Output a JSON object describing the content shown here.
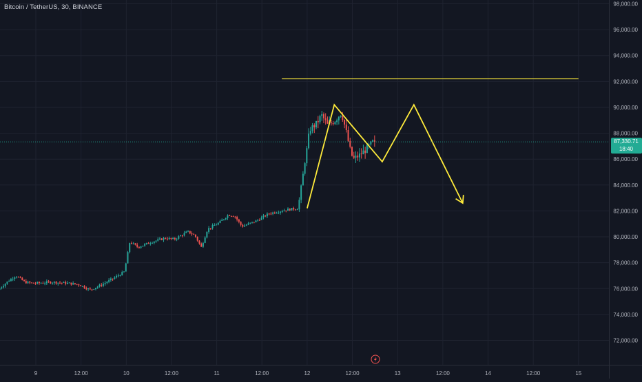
{
  "header": {
    "symbol_title": "Bitcoin / TetherUS, 30, BINANCE"
  },
  "colors": {
    "background": "#131722",
    "grid": "#1f2330",
    "axis_text": "#b2b5be",
    "up": "#26a69a",
    "down": "#ef5350",
    "drawing": "#ffeb3b",
    "last_price_bg": "#22ab94",
    "last_price_line": "#22ab94"
  },
  "icons": {
    "time_axis_icon": "lightning-bolt-icon"
  },
  "chart_data": {
    "type": "candlestick",
    "title": "Bitcoin / TetherUS, 30, BINANCE",
    "ylim": [
      70000,
      98500
    ],
    "grid": true,
    "y_ticks": [
      72000,
      74000,
      76000,
      78000,
      80000,
      82000,
      84000,
      86000,
      88000,
      90000,
      92000,
      94000,
      96000,
      98000
    ],
    "y_tick_labels": [
      "72,000.00",
      "74,000.00",
      "76,000.00",
      "78,000.00",
      "80,000.00",
      "82,000.00",
      "84,000.00",
      "86,000.00",
      "88,000.00",
      "90,000.00",
      "92,000.00",
      "94,000.00",
      "96,000.00",
      "98,000.00"
    ],
    "x_ticks": [
      {
        "day": 9,
        "label": "9"
      },
      {
        "day": 9.5,
        "label": "12:00"
      },
      {
        "day": 10,
        "label": "10"
      },
      {
        "day": 10.5,
        "label": "12:00"
      },
      {
        "day": 11,
        "label": "11"
      },
      {
        "day": 11.5,
        "label": "12:00"
      },
      {
        "day": 12,
        "label": "12"
      },
      {
        "day": 12.5,
        "label": "12:00"
      },
      {
        "day": 13,
        "label": "13"
      },
      {
        "day": 13.5,
        "label": "12:00"
      },
      {
        "day": 14,
        "label": "14"
      },
      {
        "day": 14.5,
        "label": "12:00"
      },
      {
        "day": 15,
        "label": "15"
      }
    ],
    "last_price": {
      "value": 87330.71,
      "label": "87,330.71",
      "countdown": "18:40"
    },
    "price_path": [
      [
        8.6,
        75900
      ],
      [
        8.72,
        76600
      ],
      [
        8.8,
        77000
      ],
      [
        8.9,
        76500
      ],
      [
        9.0,
        76400
      ],
      [
        9.2,
        76500
      ],
      [
        9.4,
        76400
      ],
      [
        9.5,
        76300
      ],
      [
        9.62,
        75900
      ],
      [
        9.75,
        76300
      ],
      [
        9.88,
        76800
      ],
      [
        10.0,
        77300
      ],
      [
        10.06,
        79600
      ],
      [
        10.15,
        79200
      ],
      [
        10.3,
        79600
      ],
      [
        10.45,
        79900
      ],
      [
        10.55,
        79800
      ],
      [
        10.7,
        80400
      ],
      [
        10.78,
        80100
      ],
      [
        10.85,
        79200
      ],
      [
        10.92,
        80600
      ],
      [
        11.05,
        81100
      ],
      [
        11.15,
        81700
      ],
      [
        11.22,
        81600
      ],
      [
        11.3,
        80800
      ],
      [
        11.45,
        81200
      ],
      [
        11.6,
        81800
      ],
      [
        11.8,
        82100
      ],
      [
        11.92,
        82200
      ],
      [
        12.0,
        86000
      ],
      [
        12.05,
        88300
      ],
      [
        12.12,
        88700
      ],
      [
        12.18,
        89400
      ],
      [
        12.25,
        88600
      ],
      [
        12.33,
        89000
      ],
      [
        12.4,
        89600
      ],
      [
        12.45,
        88200
      ],
      [
        12.5,
        86600
      ],
      [
        12.53,
        86000
      ],
      [
        12.6,
        86300
      ],
      [
        12.68,
        86800
      ],
      [
        12.75,
        87330.71
      ]
    ],
    "annotations": [
      {
        "type": "horizontal_segment",
        "price": 92200,
        "from_day": 11.72,
        "to_day": 15.0
      },
      {
        "type": "polyline",
        "points": [
          [
            12.0,
            82200
          ],
          [
            12.3,
            90200
          ],
          [
            12.83,
            85800
          ],
          [
            13.18,
            90200
          ],
          [
            13.72,
            82600
          ]
        ],
        "arrow_end": true
      }
    ]
  }
}
